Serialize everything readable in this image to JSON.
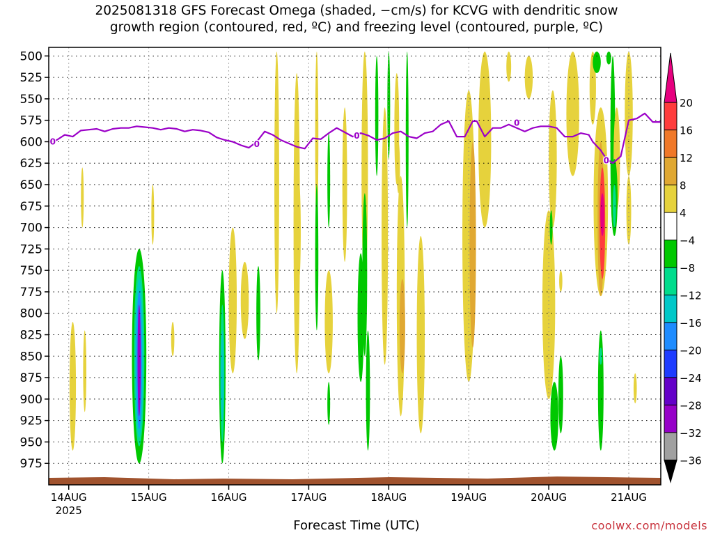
{
  "title": {
    "line1": "2025081318 GFS Forecast Omega (shaded, −cm/s) for KCVG with dendritic snow",
    "line2": "growth region (contoured, red, ºC) and freezing level (contoured, purple, ºC)"
  },
  "credit": "coolwx.com/models",
  "chart_data": {
    "type": "heatmap",
    "xlabel": "Forecast Time (UTC)",
    "x_ticks": [
      "14AUG",
      "15AUG",
      "16AUG",
      "17AUG",
      "18AUG",
      "19AUG",
      "20AUG",
      "21AUG"
    ],
    "x_year_label": "2025",
    "y_ticks": [
      500,
      525,
      550,
      575,
      600,
      625,
      650,
      675,
      700,
      725,
      750,
      775,
      800,
      825,
      850,
      875,
      900,
      925,
      950,
      975
    ],
    "ylim": [
      1000,
      490
    ],
    "xlim_days_from_14aug00z": [
      -0.25,
      7.4
    ],
    "colorbar": {
      "labels": [
        "20",
        "16",
        "12",
        "8",
        "4",
        "−4",
        "−8",
        "−12",
        "−16",
        "−20",
        "−24",
        "−28",
        "−32",
        "−36"
      ],
      "colors": [
        "#e6007f",
        "#ff3c3c",
        "#f07828",
        "#e0a832",
        "#e6d23c",
        "#ffffff",
        "#00c800",
        "#00dc8c",
        "#00c8c8",
        "#1e8cff",
        "#1e3cff",
        "#6400c8",
        "#9600c8",
        "#a0a0a0",
        "#000000"
      ]
    },
    "freezing_level_label": "0",
    "freezing_level": {
      "t": [
        -0.25,
        -0.15,
        -0.05,
        0.05,
        0.15,
        0.25,
        0.35,
        0.45,
        0.55,
        0.65,
        0.75,
        0.85,
        0.95,
        1.05,
        1.15,
        1.25,
        1.35,
        1.45,
        1.55,
        1.65,
        1.75,
        1.85,
        1.95,
        2.05,
        2.15,
        2.25,
        2.35,
        2.45,
        2.55,
        2.65,
        2.75,
        2.85,
        2.95,
        3.05,
        3.15,
        3.25,
        3.35,
        3.45,
        3.55,
        3.65,
        3.75,
        3.85,
        3.95,
        4.05,
        4.15,
        4.25,
        4.35,
        4.45,
        4.55,
        4.65,
        4.75,
        4.85,
        4.95,
        5.05,
        5.1,
        5.2,
        5.3,
        5.4,
        5.5,
        5.6,
        5.7,
        5.8,
        5.9,
        6.0,
        6.1,
        6.2,
        6.3,
        6.4,
        6.5,
        6.55,
        6.65,
        6.72,
        6.8,
        6.9,
        7.0,
        7.1,
        7.2,
        7.3,
        7.4
      ],
      "p": [
        600,
        598,
        592,
        594,
        587,
        586,
        585,
        588,
        585,
        584,
        584,
        582,
        583,
        584,
        586,
        584,
        585,
        588,
        586,
        587,
        589,
        595,
        598,
        600,
        604,
        607,
        600,
        588,
        592,
        598,
        602,
        606,
        608,
        596,
        597,
        590,
        584,
        589,
        594,
        590,
        593,
        598,
        596,
        590,
        588,
        594,
        596,
        590,
        588,
        580,
        576,
        594,
        594,
        576,
        576,
        594,
        584,
        584,
        580,
        584,
        588,
        584,
        582,
        582,
        584,
        594,
        594,
        590,
        592,
        600,
        610,
        620,
        625,
        617,
        575,
        573,
        567,
        577,
        577
      ]
    }
  }
}
